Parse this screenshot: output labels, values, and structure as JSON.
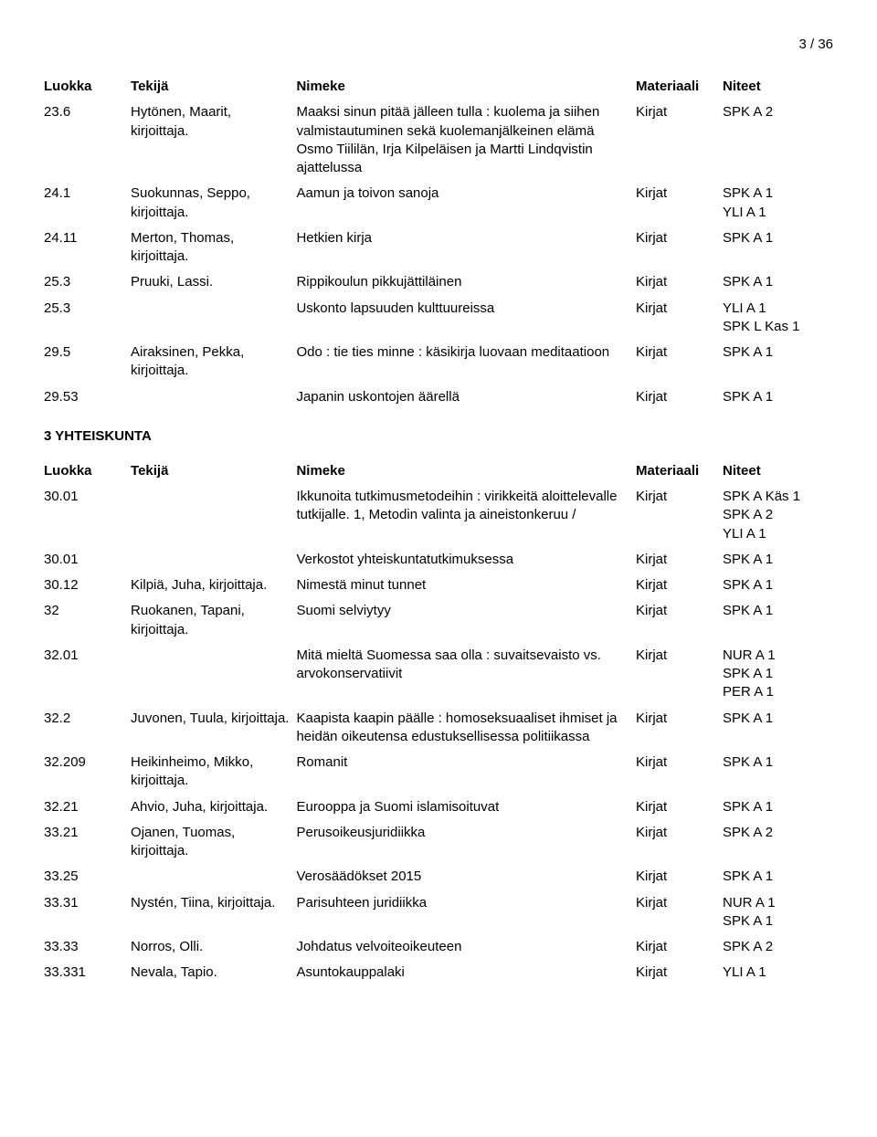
{
  "page_number": "3 / 36",
  "columns": {
    "luokka": "Luokka",
    "tekija": "Tekijä",
    "nimeke": "Nimeke",
    "materiaali": "Materiaali",
    "niteet": "Niteet"
  },
  "table1": {
    "rows": [
      {
        "luokka": "23.6",
        "tekija": "Hytönen, Maarit, kirjoittaja.",
        "nimeke": "Maaksi sinun pitää jälleen tulla : kuolema ja siihen valmistautuminen sekä kuolemanjälkeinen elämä Osmo Tiililän, Irja Kilpeläisen ja Martti Lindqvistin ajattelussa",
        "materiaali": "Kirjat",
        "niteet": [
          "SPK A 2"
        ]
      },
      {
        "luokka": "24.1",
        "tekija": "Suokunnas, Seppo, kirjoittaja.",
        "nimeke": "Aamun ja toivon sanoja",
        "materiaali": "Kirjat",
        "niteet": [
          "SPK A 1",
          "YLI A 1"
        ]
      },
      {
        "luokka": "24.11",
        "tekija": "Merton, Thomas, kirjoittaja.",
        "nimeke": "Hetkien kirja",
        "materiaali": "Kirjat",
        "niteet": [
          "SPK A 1"
        ]
      },
      {
        "luokka": "25.3",
        "tekija": "Pruuki, Lassi.",
        "nimeke": "Rippikoulun pikkujättiläinen",
        "materiaali": "Kirjat",
        "niteet": [
          "SPK A 1"
        ]
      },
      {
        "luokka": "25.3",
        "tekija": "",
        "nimeke": "Uskonto lapsuuden kulttuureissa",
        "materiaali": "Kirjat",
        "niteet": [
          "YLI A 1",
          "SPK L Kas 1"
        ]
      },
      {
        "luokka": "29.5",
        "tekija": "Airaksinen, Pekka, kirjoittaja.",
        "nimeke": "Odo : tie ties minne : käsikirja luovaan meditaatioon",
        "materiaali": "Kirjat",
        "niteet": [
          "SPK A 1"
        ]
      },
      {
        "luokka": "29.53",
        "tekija": "",
        "nimeke": "Japanin uskontojen äärellä",
        "materiaali": "Kirjat",
        "niteet": [
          "SPK A 1"
        ]
      }
    ]
  },
  "section2_title": "3 YHTEISKUNTA",
  "table2": {
    "rows": [
      {
        "luokka": "30.01",
        "tekija": "",
        "nimeke": "Ikkunoita tutkimusmetodeihin : virikkeitä aloittelevalle tutkijalle. 1, Metodin valinta ja aineistonkeruu /",
        "materiaali": "Kirjat",
        "niteet": [
          "SPK A Käs 1",
          "SPK A 2",
          "YLI A 1"
        ]
      },
      {
        "luokka": "30.01",
        "tekija": "",
        "nimeke": "Verkostot yhteiskuntatutkimuksessa",
        "materiaali": "Kirjat",
        "niteet": [
          "SPK A 1"
        ]
      },
      {
        "luokka": "30.12",
        "tekija": "Kilpiä, Juha, kirjoittaja.",
        "nimeke": "Nimestä minut tunnet",
        "materiaali": "Kirjat",
        "niteet": [
          "SPK A 1"
        ]
      },
      {
        "luokka": "32",
        "tekija": "Ruokanen, Tapani, kirjoittaja.",
        "nimeke": "Suomi selviytyy",
        "materiaali": "Kirjat",
        "niteet": [
          "SPK A 1"
        ]
      },
      {
        "luokka": "32.01",
        "tekija": "",
        "nimeke": "Mitä mieltä Suomessa saa olla : suvaitsevaisto vs. arvokonservatiivit",
        "materiaali": "Kirjat",
        "niteet": [
          "NUR A 1",
          "SPK A 1",
          "PER A 1"
        ]
      },
      {
        "luokka": "32.2",
        "tekija": "Juvonen, Tuula, kirjoittaja.",
        "nimeke": "Kaapista kaapin päälle : homoseksuaaliset ihmiset ja heidän oikeutensa edustuksellisessa politiikassa",
        "materiaali": "Kirjat",
        "niteet": [
          "SPK A 1"
        ]
      },
      {
        "luokka": "32.209",
        "tekija": "Heikinheimo, Mikko, kirjoittaja.",
        "nimeke": "Romanit",
        "materiaali": "Kirjat",
        "niteet": [
          "SPK A 1"
        ]
      },
      {
        "luokka": "32.21",
        "tekija": "Ahvio, Juha, kirjoittaja.",
        "nimeke": "Eurooppa ja Suomi islamisoituvat",
        "materiaali": "Kirjat",
        "niteet": [
          "SPK A 1"
        ]
      },
      {
        "luokka": "33.21",
        "tekija": "Ojanen, Tuomas, kirjoittaja.",
        "nimeke": "Perusoikeusjuridiikka",
        "materiaali": "Kirjat",
        "niteet": [
          "SPK A 2"
        ]
      },
      {
        "luokka": "33.25",
        "tekija": "",
        "nimeke": "Verosäädökset 2015",
        "materiaali": "Kirjat",
        "niteet": [
          "SPK A 1"
        ]
      },
      {
        "luokka": "33.31",
        "tekija": "Nystén, Tiina, kirjoittaja.",
        "nimeke": "Parisuhteen juridiikka",
        "materiaali": "Kirjat",
        "niteet": [
          "NUR A 1",
          "SPK A 1"
        ]
      },
      {
        "luokka": "33.33",
        "tekija": "Norros, Olli.",
        "nimeke": "Johdatus velvoiteoikeuteen",
        "materiaali": "Kirjat",
        "niteet": [
          "SPK A 2"
        ]
      },
      {
        "luokka": "33.331",
        "tekija": "Nevala, Tapio.",
        "nimeke": "Asuntokauppalaki",
        "materiaali": "Kirjat",
        "niteet": [
          "YLI A 1"
        ]
      }
    ]
  }
}
